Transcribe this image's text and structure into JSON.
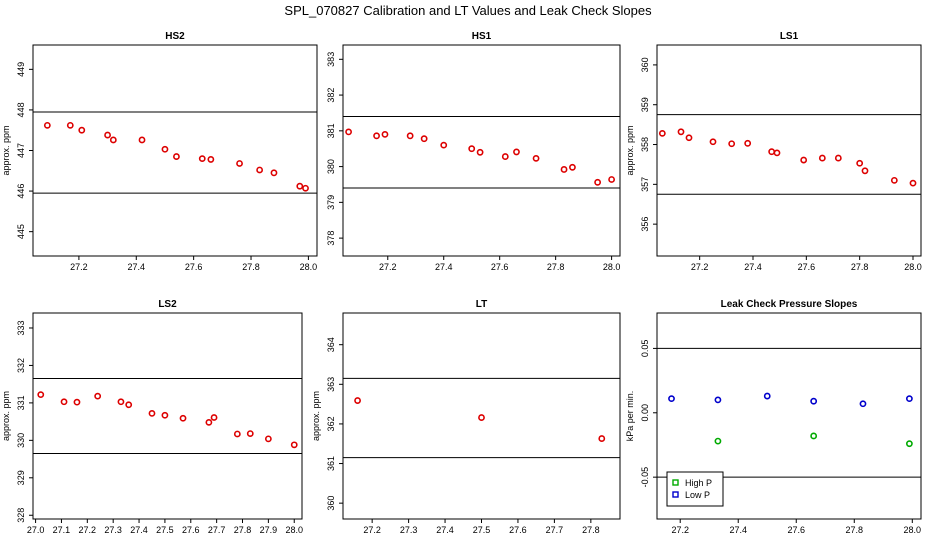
{
  "figure_title": "SPL_070827  Calibration and LT Values and Leak Check Slopes",
  "chart_data": [
    {
      "type": "scatter",
      "title": "HS2",
      "ylabel": "approx. ppm",
      "xlim": [
        27.04,
        28.03
      ],
      "ylim": [
        444.4,
        449.6
      ],
      "xticks": [
        27.2,
        27.4,
        27.6,
        27.8,
        28.0
      ],
      "xtick_labels": [
        "27.2",
        "27.4",
        "27.6",
        "27.8",
        "28.0"
      ],
      "yticks": [
        445,
        446,
        447,
        448,
        449
      ],
      "ytick_labels": [
        "445",
        "446",
        "447",
        "448",
        "449"
      ],
      "hlines": [
        447.95,
        445.95
      ],
      "series": [
        {
          "color": "#dd0000",
          "x": [
            27.09,
            27.17,
            27.21,
            27.3,
            27.32,
            27.42,
            27.5,
            27.54,
            27.63,
            27.66,
            27.76,
            27.83,
            27.88,
            27.97,
            27.99
          ],
          "y": [
            447.62,
            447.62,
            447.5,
            447.38,
            447.26,
            447.26,
            447.03,
            446.85,
            446.8,
            446.78,
            446.68,
            446.52,
            446.45,
            446.12,
            446.07
          ]
        }
      ]
    },
    {
      "type": "scatter",
      "title": "HS1",
      "ylabel": "",
      "xlim": [
        27.04,
        28.03
      ],
      "ylim": [
        377.5,
        383.4
      ],
      "xticks": [
        27.2,
        27.4,
        27.6,
        27.8,
        28.0
      ],
      "xtick_labels": [
        "27.2",
        "27.4",
        "27.6",
        "27.8",
        "28.0"
      ],
      "yticks": [
        378,
        379,
        380,
        381,
        382,
        383
      ],
      "ytick_labels": [
        "378",
        "379",
        "380",
        "381",
        "382",
        "383"
      ],
      "hlines": [
        381.4,
        379.4
      ],
      "series": [
        {
          "color": "#dd0000",
          "x": [
            27.06,
            27.16,
            27.19,
            27.28,
            27.33,
            27.4,
            27.5,
            27.53,
            27.62,
            27.66,
            27.73,
            27.83,
            27.86,
            27.95,
            28.0
          ],
          "y": [
            380.97,
            380.86,
            380.9,
            380.86,
            380.78,
            380.6,
            380.5,
            380.4,
            380.28,
            380.41,
            380.23,
            379.92,
            379.98,
            379.56,
            379.64
          ]
        }
      ]
    },
    {
      "type": "scatter",
      "title": "LS1",
      "ylabel": "approx. ppm",
      "xlim": [
        27.04,
        28.03
      ],
      "ylim": [
        355.2,
        360.5
      ],
      "xticks": [
        27.2,
        27.4,
        27.6,
        27.8,
        28.0
      ],
      "xtick_labels": [
        "27.2",
        "27.4",
        "27.6",
        "27.8",
        "28.0"
      ],
      "yticks": [
        356,
        357,
        358,
        359,
        360
      ],
      "ytick_labels": [
        "356",
        "357",
        "358",
        "359",
        "360"
      ],
      "hlines": [
        358.75,
        356.75
      ],
      "series": [
        {
          "color": "#dd0000",
          "x": [
            27.06,
            27.13,
            27.16,
            27.25,
            27.32,
            27.38,
            27.47,
            27.49,
            27.59,
            27.66,
            27.72,
            27.8,
            27.82,
            27.93,
            28.0
          ],
          "y": [
            358.28,
            358.32,
            358.17,
            358.07,
            358.02,
            358.03,
            357.82,
            357.79,
            357.61,
            357.66,
            357.66,
            357.53,
            357.34,
            357.1,
            357.03
          ]
        }
      ]
    },
    {
      "type": "scatter",
      "title": "LS2",
      "ylabel": "approx. ppm",
      "xlim": [
        26.99,
        28.03
      ],
      "ylim": [
        327.9,
        333.4
      ],
      "xticks": [
        27.0,
        27.1,
        27.2,
        27.3,
        27.4,
        27.5,
        27.6,
        27.7,
        27.8,
        27.9,
        28.0
      ],
      "xtick_labels": [
        "27.0",
        "27.1",
        "27.2",
        "27.3",
        "27.4",
        "27.5",
        "27.6",
        "27.7",
        "27.8",
        "27.9",
        "28.0"
      ],
      "yticks": [
        328,
        329,
        330,
        331,
        332,
        333
      ],
      "ytick_labels": [
        "328",
        "329",
        "330",
        "331",
        "332",
        "333"
      ],
      "hlines": [
        331.65,
        329.65
      ],
      "series": [
        {
          "color": "#dd0000",
          "x": [
            27.02,
            27.11,
            27.16,
            27.24,
            27.33,
            27.36,
            27.45,
            27.5,
            27.57,
            27.67,
            27.69,
            27.78,
            27.83,
            27.9,
            28.0
          ],
          "y": [
            331.22,
            331.03,
            331.02,
            331.18,
            331.03,
            330.95,
            330.72,
            330.67,
            330.59,
            330.48,
            330.61,
            330.17,
            330.18,
            330.04,
            329.88
          ]
        }
      ]
    },
    {
      "type": "scatter",
      "title": "LT",
      "ylabel": "approx. ppm",
      "xlim": [
        27.12,
        27.88
      ],
      "ylim": [
        359.6,
        364.8
      ],
      "xticks": [
        27.2,
        27.3,
        27.4,
        27.5,
        27.6,
        27.7,
        27.8
      ],
      "xtick_labels": [
        "27.2",
        "27.3",
        "27.4",
        "27.5",
        "27.6",
        "27.7",
        "27.8"
      ],
      "yticks": [
        360,
        361,
        362,
        363,
        364
      ],
      "ytick_labels": [
        "360",
        "361",
        "362",
        "363",
        "364"
      ],
      "hlines": [
        363.15,
        361.15
      ],
      "series": [
        {
          "color": "#dd0000",
          "x": [
            27.16,
            27.5,
            27.83
          ],
          "y": [
            362.59,
            362.16,
            361.63
          ]
        }
      ]
    },
    {
      "type": "scatter",
      "title": "Leak Check Pressure Slopes",
      "ylabel": "kPa per min.",
      "xlim": [
        27.12,
        28.03
      ],
      "ylim": [
        -0.0825,
        0.0775
      ],
      "xticks": [
        27.2,
        27.4,
        27.6,
        27.8,
        28.0
      ],
      "xtick_labels": [
        "27.2",
        "27.4",
        "27.6",
        "27.8",
        "28.0"
      ],
      "yticks": [
        -0.05,
        0.0,
        0.05
      ],
      "ytick_labels": [
        "-0.05",
        "0.00",
        "0.05"
      ],
      "hlines": [
        0.05,
        -0.05
      ],
      "legend": "bottom-left",
      "series": [
        {
          "name": "High P",
          "color": "#00aa00",
          "x": [
            27.33,
            27.66,
            27.99
          ],
          "y": [
            -0.022,
            -0.018,
            -0.024
          ]
        },
        {
          "name": "Low P",
          "color": "#0000cc",
          "x": [
            27.17,
            27.33,
            27.5,
            27.66,
            27.83,
            27.99
          ],
          "y": [
            0.011,
            0.01,
            0.013,
            0.009,
            0.007,
            0.011
          ]
        }
      ]
    }
  ]
}
